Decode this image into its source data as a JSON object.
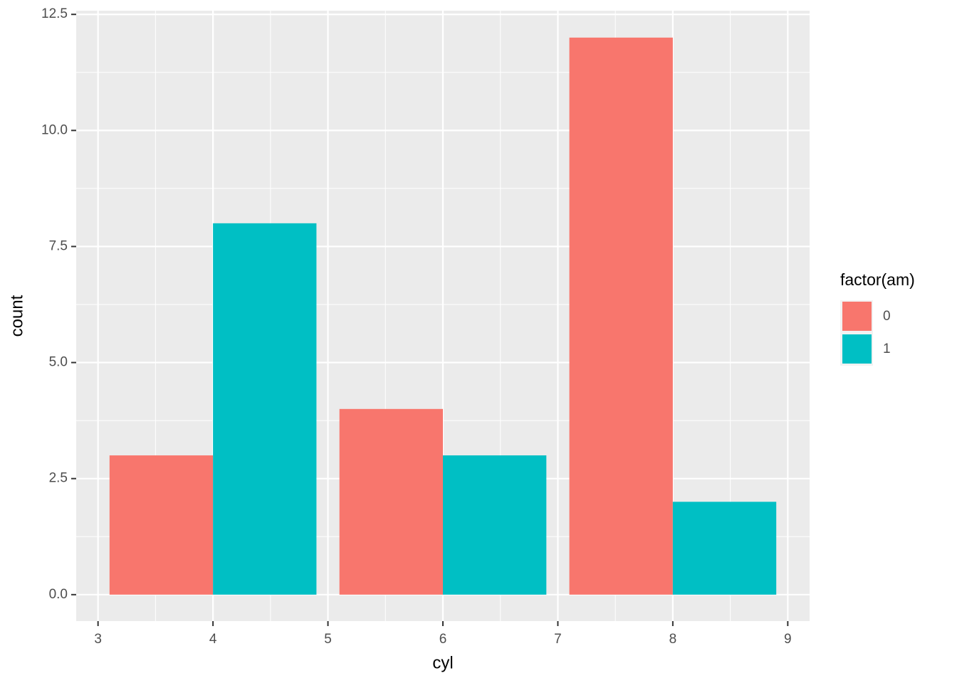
{
  "chart_data": {
    "type": "bar",
    "x": [
      4,
      6,
      8
    ],
    "series": [
      {
        "name": "0",
        "color": "#F8766D",
        "values": [
          3,
          4,
          12
        ]
      },
      {
        "name": "1",
        "color": "#00BFC4",
        "values": [
          8,
          3,
          2
        ]
      }
    ],
    "x_label": "cyl",
    "y_label": "count",
    "legend_title": "factor(am)",
    "xlim": [
      2.81,
      9.19
    ],
    "xticks": [
      3,
      4,
      5,
      6,
      7,
      8,
      9
    ],
    "ylim": [
      -0.57,
      12.58
    ],
    "yticks": [
      {
        "value": 0,
        "label": "0.0"
      },
      {
        "value": 2.5,
        "label": "2.5"
      },
      {
        "value": 5,
        "label": "5.0"
      },
      {
        "value": 7.5,
        "label": "7.5"
      },
      {
        "value": 10,
        "label": "10.0"
      },
      {
        "value": 12.5,
        "label": "12.5"
      }
    ],
    "grid": true,
    "legend": "right"
  }
}
